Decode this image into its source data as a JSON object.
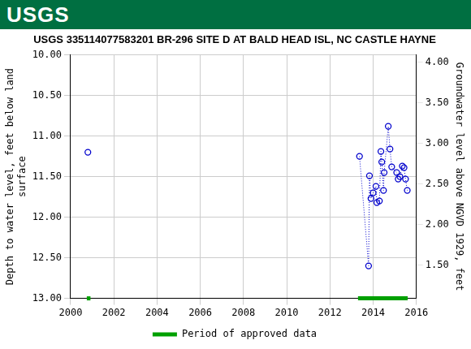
{
  "header": {
    "logo": "USGS"
  },
  "chart_data": {
    "type": "scatter",
    "title": "USGS 335114077583201 BR-296 SITE D AT BALD HEAD ISL, NC CASTLE HAYNE",
    "ylabel": [
      "Depth to water level, feet below land",
      "surface"
    ],
    "y2label": "Groundwater level above NGVD 1929, feet",
    "xlim": [
      2000,
      2016
    ],
    "xticks": [
      2000,
      2002,
      2004,
      2006,
      2008,
      2010,
      2012,
      2014,
      2016
    ],
    "ylim": [
      13,
      10
    ],
    "yticks": [
      {
        "value": 10,
        "label": "10.00"
      },
      {
        "value": 10.5,
        "label": "10.50"
      },
      {
        "value": 11,
        "label": "11.00"
      },
      {
        "value": 11.5,
        "label": "11.50"
      },
      {
        "value": 12,
        "label": "12.00"
      },
      {
        "value": 12.5,
        "label": "12.50"
      },
      {
        "value": 13,
        "label": "13.00"
      }
    ],
    "y2lim": [
      1.09,
      4.09
    ],
    "y2ticks": [
      {
        "value": 1.5,
        "label": "1.50"
      },
      {
        "value": 2,
        "label": "2.00"
      },
      {
        "value": 2.5,
        "label": "2.50"
      },
      {
        "value": 3,
        "label": "3.00"
      },
      {
        "value": 3.5,
        "label": "3.50"
      },
      {
        "value": 4,
        "label": "4.00"
      }
    ],
    "grid": true,
    "legend": "bottom",
    "series": [
      {
        "color": "#0000cc",
        "marker": "circle",
        "line_style": "dotted",
        "x": [
          2000.8
        ],
        "values": [
          11.2
        ]
      },
      {
        "color": "#0000cc",
        "marker": "circle",
        "line_style": "dotted",
        "x": [
          2013.37,
          2013.79,
          2013.83,
          2013.9,
          2014.0,
          2014.13,
          2014.17,
          2014.29,
          2014.36,
          2014.4,
          2014.48,
          2014.51,
          2014.7,
          2014.78,
          2014.86,
          2015.09,
          2015.16,
          2015.24,
          2015.35,
          2015.43,
          2015.5,
          2015.58
        ],
        "values": [
          11.25,
          12.6,
          11.49,
          11.77,
          11.7,
          11.62,
          11.82,
          11.8,
          11.19,
          11.32,
          11.67,
          11.45,
          10.88,
          11.16,
          11.38,
          11.45,
          11.53,
          11.5,
          11.37,
          11.39,
          11.53,
          11.67
        ]
      }
    ],
    "approved_data": {
      "name": "Period of approved data",
      "color": "#00a000",
      "periods": [
        [
          2000.75,
          2000.92
        ],
        [
          2013.3,
          2015.6
        ]
      ]
    }
  }
}
